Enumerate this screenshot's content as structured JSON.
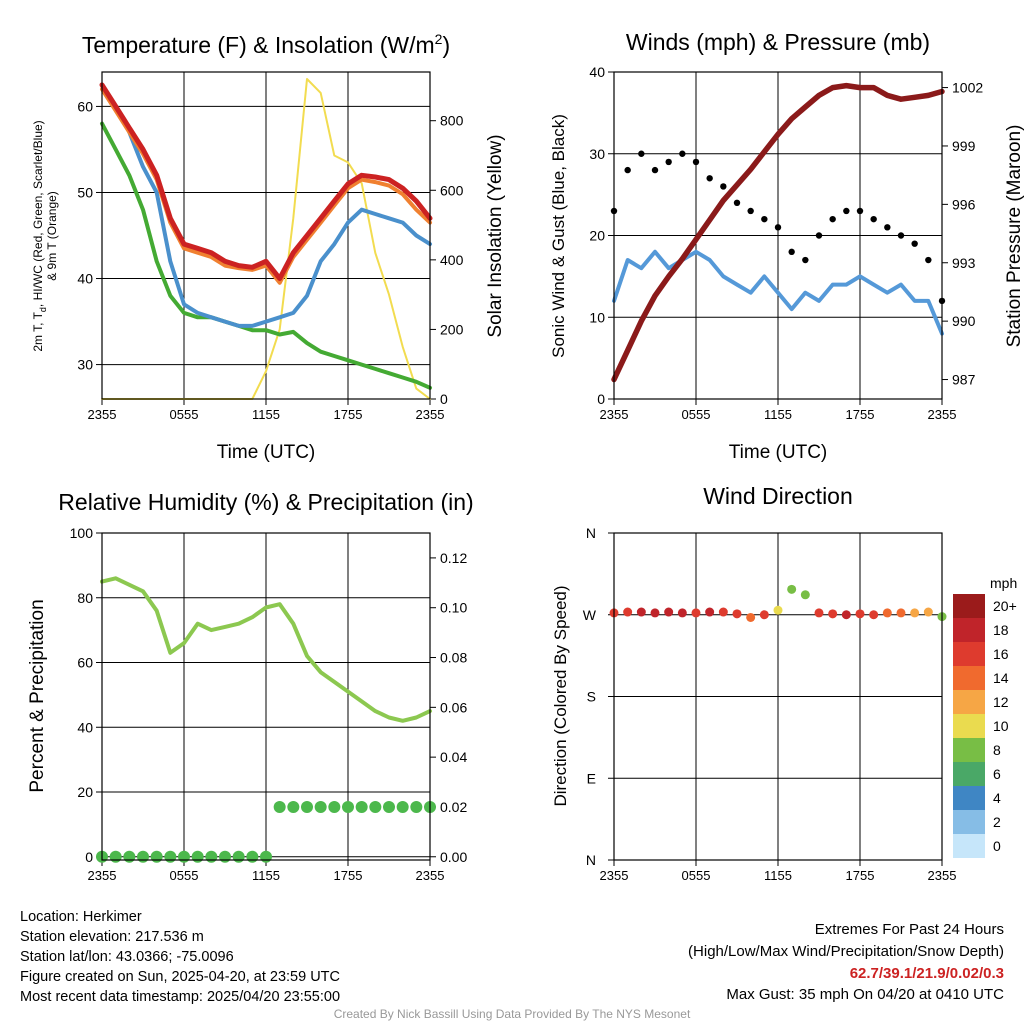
{
  "colors": {
    "temp": "#cc2222",
    "heat_index": "#f08030",
    "dewpoint": "#44aa33",
    "temp9m": "#4a90cc",
    "solar": "#f2dc50",
    "wind": "#5599d8",
    "gust": "#000000",
    "pressure": "#8b1a1a",
    "rh": "#8cc850",
    "precip": "#4cb84c",
    "extremes_value": "#cc2222",
    "credit": "#999999"
  },
  "time_ticks": [
    "2355",
    "0555",
    "1155",
    "1755",
    "2355"
  ],
  "panels": {
    "temperature": {
      "title_main": "Temperature (F) & Insolation (W/m",
      "title_sup": "2",
      "title_end": ")",
      "ylabel_line1": "2m T, T",
      "ylabel_sub": "d",
      "ylabel_line1_end": ", HI/WC (Red, Green, Scarlet/Blue)",
      "ylabel_line2": "& 9m T (Orange)",
      "y2label": "Solar Insolation (Yellow)",
      "xlabel": "Time (UTC)"
    },
    "winds": {
      "title": "Winds (mph) & Pressure (mb)",
      "ylabel": "Sonic Wind & Gust (Blue, Black)",
      "y2label": "Station Pressure (Maroon)",
      "xlabel": "Time (UTC)"
    },
    "humidity": {
      "title": "Relative Humidity (%) & Precipitation (in)",
      "ylabel": "Percent & Precipitation"
    },
    "direction": {
      "title": "Wind Direction",
      "ylabel": "Direction (Colored By Speed)",
      "colorbar_title": "mph"
    }
  },
  "info": {
    "location": "Location: Herkimer",
    "elevation": "Station elevation: 217.536 m",
    "latlon": "Station lat/lon: 43.0366; -75.0096",
    "created": "Figure created on Sun, 2025-04-20, at 23:59 UTC",
    "recent": "Most recent data timestamp: 2025/04/20 23:55:00"
  },
  "extremes": {
    "title": "Extremes For Past 24 Hours",
    "subtitle": "(High/Low/Max Wind/Precipitation/Snow Depth)",
    "values": "62.7/39.1/21.9/0.02/0.3",
    "gust": "Max Gust: 35 mph On 04/20 at 0410 UTC"
  },
  "credit": "Created By Nick Bassill Using Data Provided By The NYS Mesonet",
  "chart_data": [
    {
      "type": "line",
      "title": "Temperature (F) & Insolation (W/m2)",
      "xlabel": "Time (UTC)",
      "ylabel": "2m T, Td, HI/WC (Red, Green, Scarlet/Blue) & 9m T (Orange)",
      "y2label": "Solar Insolation (Yellow)",
      "x": [
        "2355",
        "0055",
        "0155",
        "0255",
        "0355",
        "0455",
        "0555",
        "0655",
        "0755",
        "0855",
        "0955",
        "1055",
        "1155",
        "1255",
        "1355",
        "1455",
        "1555",
        "1655",
        "1755",
        "1855",
        "1955",
        "2055",
        "2155",
        "2255",
        "2355"
      ],
      "ylim": [
        26,
        64
      ],
      "yticks": [
        30,
        40,
        50,
        60
      ],
      "y2lim": [
        0,
        940
      ],
      "y2ticks": [
        0,
        200,
        400,
        600,
        800
      ],
      "grid": true,
      "series": [
        {
          "name": "2m T",
          "color": "#cc2222",
          "axis": "left",
          "values": [
            62.5,
            60,
            57.5,
            55,
            52,
            47,
            44,
            43.5,
            43,
            42,
            41.5,
            41.3,
            42,
            40,
            43,
            45,
            47,
            49,
            51,
            52,
            51.8,
            51.5,
            50.5,
            49,
            47
          ]
        },
        {
          "name": "HI/WC",
          "color": "#f08030",
          "axis": "left",
          "values": [
            62,
            59.5,
            57,
            54.5,
            51.5,
            46.5,
            43.5,
            43,
            42.5,
            41.5,
            41.2,
            41,
            41.5,
            39.5,
            42.5,
            44.5,
            46.5,
            48.5,
            50.5,
            51.5,
            51.2,
            50.8,
            49.8,
            48,
            46.5
          ]
        },
        {
          "name": "2m Td",
          "color": "#44aa33",
          "axis": "left",
          "values": [
            58,
            55,
            52,
            48,
            42,
            38,
            36,
            35.5,
            35.5,
            35,
            34.5,
            34,
            34,
            33.5,
            33.8,
            32.5,
            31.5,
            31,
            30.5,
            30,
            29.5,
            29,
            28.5,
            28,
            27.3
          ]
        },
        {
          "name": "9m T",
          "color": "#4a90cc",
          "axis": "left",
          "values": [
            null,
            null,
            57,
            53,
            50,
            42,
            37,
            36,
            35.5,
            35,
            34.5,
            34.5,
            35,
            35.5,
            36,
            38,
            42,
            44,
            46.5,
            48,
            47.5,
            47,
            46.5,
            45,
            44
          ]
        },
        {
          "name": "Solar Insolation",
          "color": "#f2dc50",
          "axis": "right",
          "values": [
            0,
            0,
            0,
            0,
            0,
            0,
            0,
            0,
            0,
            0,
            0,
            0,
            80,
            200,
            520,
            920,
            880,
            700,
            680,
            620,
            420,
            300,
            150,
            30,
            0
          ]
        }
      ]
    },
    {
      "type": "line",
      "title": "Winds (mph) & Pressure (mb)",
      "xlabel": "Time (UTC)",
      "ylabel": "Sonic Wind & Gust (Blue, Black)",
      "y2label": "Station Pressure (Maroon)",
      "x": [
        "2355",
        "0055",
        "0155",
        "0255",
        "0355",
        "0455",
        "0555",
        "0655",
        "0755",
        "0855",
        "0955",
        "1055",
        "1155",
        "1255",
        "1355",
        "1455",
        "1555",
        "1655",
        "1755",
        "1855",
        "1955",
        "2055",
        "2155",
        "2255",
        "2355"
      ],
      "ylim": [
        0,
        40
      ],
      "yticks": [
        0,
        10,
        20,
        30,
        40
      ],
      "y2lim": [
        986,
        1002.8
      ],
      "y2ticks": [
        987,
        990,
        993,
        996,
        999,
        1002
      ],
      "grid": true,
      "series": [
        {
          "name": "Sonic Wind",
          "color": "#5599d8",
          "axis": "left",
          "values": [
            12,
            17,
            16,
            18,
            16,
            17,
            18,
            17,
            15,
            14,
            13,
            15,
            13,
            11,
            13,
            12,
            14,
            14,
            15,
            14,
            13,
            14,
            12,
            12,
            8
          ]
        },
        {
          "name": "Gust",
          "color": "#000000",
          "axis": "left",
          "style": "markers",
          "values": [
            23,
            28,
            30,
            28,
            29,
            30,
            29,
            27,
            26,
            24,
            23,
            22,
            21,
            18,
            17,
            20,
            22,
            23,
            23,
            22,
            21,
            20,
            19,
            17,
            12
          ]
        },
        {
          "name": "Station Pressure",
          "color": "#8b1a1a",
          "axis": "right",
          "values": [
            987,
            988.5,
            990,
            991.3,
            992.3,
            993.2,
            994.2,
            995.2,
            996.2,
            997,
            997.8,
            998.7,
            999.6,
            1000.4,
            1001,
            1001.6,
            1002,
            1002.1,
            1002,
            1002,
            1001.6,
            1001.4,
            1001.5,
            1001.6,
            1001.8
          ]
        }
      ]
    },
    {
      "type": "line",
      "title": "Relative Humidity (%) & Precipitation (in)",
      "ylabel": "Percent & Precipitation",
      "x": [
        "2355",
        "0055",
        "0155",
        "0255",
        "0355",
        "0455",
        "0555",
        "0655",
        "0755",
        "0855",
        "0955",
        "1055",
        "1155",
        "1255",
        "1355",
        "1455",
        "1555",
        "1655",
        "1755",
        "1855",
        "1955",
        "2055",
        "2155",
        "2255",
        "2355"
      ],
      "ylim": [
        -1,
        100
      ],
      "yticks": [
        0,
        20,
        40,
        60,
        80,
        100
      ],
      "y2lim": [
        -0.0013,
        0.13
      ],
      "y2ticks": [
        0.0,
        0.02,
        0.04,
        0.06,
        0.08,
        0.1,
        0.12
      ],
      "grid": true,
      "series": [
        {
          "name": "Relative Humidity",
          "color": "#8cc850",
          "axis": "left",
          "values": [
            85,
            86,
            84,
            82,
            76,
            63,
            66,
            72,
            70,
            71,
            72,
            74,
            77,
            78,
            72,
            62,
            57,
            54,
            51,
            48,
            45,
            43,
            42,
            43,
            45
          ]
        },
        {
          "name": "Precipitation",
          "color": "#4cb84c",
          "axis": "right",
          "style": "markers",
          "values": [
            0,
            0,
            0,
            0,
            0,
            0,
            0,
            0,
            0,
            0,
            0,
            0,
            0,
            0.02,
            0.02,
            0.02,
            0.02,
            0.02,
            0.02,
            0.02,
            0.02,
            0.02,
            0.02,
            0.02,
            0.02
          ]
        }
      ]
    },
    {
      "type": "scatter",
      "title": "Wind Direction",
      "ylabel": "Direction (Colored By Speed)",
      "x": [
        "2355",
        "0055",
        "0155",
        "0255",
        "0355",
        "0455",
        "0555",
        "0655",
        "0755",
        "0855",
        "0955",
        "1055",
        "1155",
        "1255",
        "1355",
        "1455",
        "1555",
        "1655",
        "1755",
        "1855",
        "1955",
        "2055",
        "2155",
        "2255",
        "2355"
      ],
      "yticks": [
        "N",
        "W",
        "S",
        "E",
        "N"
      ],
      "ylim_degrees": [
        360,
        0
      ],
      "direction_degrees": [
        272,
        273,
        273,
        272,
        273,
        272,
        272,
        273,
        273,
        271,
        267,
        270,
        275,
        298,
        292,
        272,
        271,
        270,
        271,
        270,
        272,
        272,
        272,
        273,
        268
      ],
      "speed_mph": [
        16,
        17,
        18,
        18,
        19,
        18,
        17,
        18,
        17,
        16,
        15,
        16,
        10,
        8,
        9,
        16,
        17,
        18,
        17,
        16,
        15,
        14,
        13,
        12,
        8
      ],
      "colorbar": {
        "title": "mph",
        "labels": [
          "20+",
          "18",
          "16",
          "14",
          "12",
          "10",
          "8",
          "6",
          "4",
          "2",
          "0"
        ],
        "colors": [
          "#9b1b1b",
          "#c0242a",
          "#de3b2e",
          "#f06a2e",
          "#f6a645",
          "#eadb4f",
          "#78be45",
          "#4aa867",
          "#3f86c4",
          "#86bde6",
          "#c6e6fa"
        ]
      }
    }
  ]
}
